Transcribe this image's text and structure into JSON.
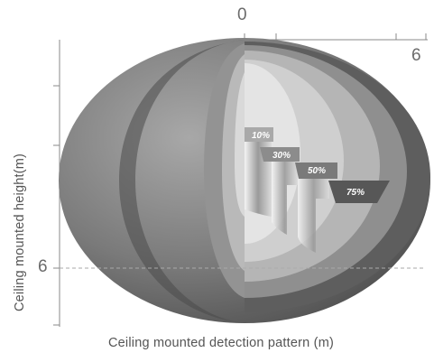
{
  "axis": {
    "top_tick_zero": "0",
    "top_tick_six": "6",
    "left_tick_six": "6",
    "ylabel": "Ceiling mounted height(m)",
    "xlabel": "Ceiling mounted detection pattern (m)"
  },
  "zones": [
    {
      "label": "10%"
    },
    {
      "label": "30%"
    },
    {
      "label": "50%"
    },
    {
      "label": "75%"
    }
  ],
  "colors": {
    "outer": "#7d7d7d",
    "band1": "#5c5c5c",
    "band2": "#8e8e8e",
    "band3": "#b3b3b3",
    "band4": "#d0d0d0",
    "core": "#e6e6e6"
  }
}
